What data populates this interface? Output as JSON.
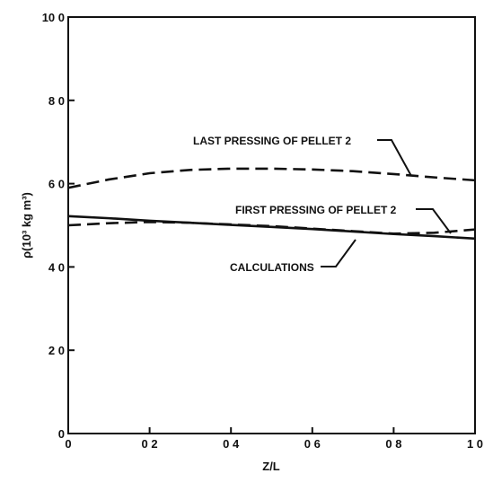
{
  "chart_data": {
    "type": "line",
    "title": "",
    "xlabel": "Z/L",
    "ylabel": "ρ(10³ kg m³)",
    "xlim": [
      0,
      1.0
    ],
    "ylim": [
      0,
      10.0
    ],
    "x_ticks": [
      0,
      0.2,
      0.4,
      0.6,
      0.8,
      1.0
    ],
    "x_tick_labels": [
      "0",
      "0 2",
      "0 4",
      "0 6",
      "0 8",
      "1 0"
    ],
    "y_ticks": [
      0,
      2.0,
      4.0,
      6.0,
      8.0,
      10.0
    ],
    "y_tick_labels": [
      "0",
      "2 0",
      "4 0",
      "6 0",
      "8 0",
      "10 0"
    ],
    "grid": false,
    "series": [
      {
        "name": "LAST PRESSING OF PELLET 2",
        "style": "dashed",
        "x": [
          0,
          0.1,
          0.2,
          0.3,
          0.4,
          0.5,
          0.6,
          0.7,
          0.8,
          0.9,
          1.0
        ],
        "y": [
          5.9,
          6.1,
          6.25,
          6.33,
          6.36,
          6.36,
          6.34,
          6.3,
          6.23,
          6.15,
          6.08
        ]
      },
      {
        "name": "FIRST PRESSING OF PELLET 2",
        "style": "dashed",
        "x": [
          0,
          0.1,
          0.2,
          0.3,
          0.4,
          0.5,
          0.6,
          0.7,
          0.8,
          0.9,
          1.0
        ],
        "y": [
          5.0,
          5.05,
          5.08,
          5.06,
          5.02,
          4.98,
          4.92,
          4.86,
          4.8,
          4.82,
          4.9
        ]
      },
      {
        "name": "CALCULATIONS",
        "style": "solid",
        "x": [
          0,
          0.1,
          0.2,
          0.3,
          0.4,
          0.5,
          0.6,
          0.7,
          0.8,
          0.9,
          1.0
        ],
        "y": [
          5.22,
          5.17,
          5.11,
          5.06,
          5.01,
          4.96,
          4.91,
          4.85,
          4.79,
          4.74,
          4.68
        ]
      }
    ],
    "annotations": [
      "LAST PRESSING OF PELLET 2",
      "FIRST PRESSING OF PELLET 2",
      "CALCULATIONS"
    ],
    "colors": {
      "line": "#111111",
      "background": "#ffffff"
    }
  }
}
